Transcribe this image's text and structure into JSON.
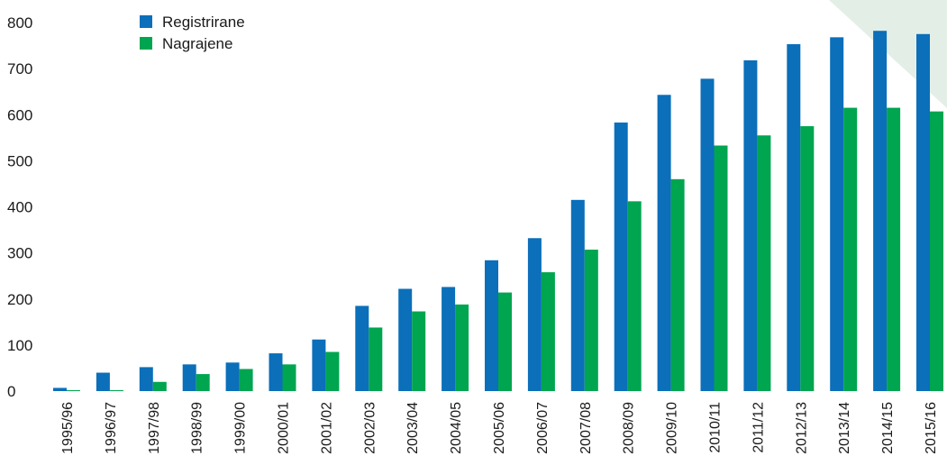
{
  "chart_data": {
    "type": "bar",
    "categories": [
      "1995/96",
      "1996/97",
      "1997/98",
      "1998/99",
      "1999/00",
      "2000/01",
      "2001/02",
      "2002/03",
      "2003/04",
      "2004/05",
      "2005/06",
      "2006/07",
      "2007/08",
      "2008/09",
      "2009/10",
      "2010/11",
      "2011/12",
      "2012/13",
      "2013/14",
      "2014/15",
      "2015/16"
    ],
    "series": [
      {
        "name": "Registrirane",
        "color": "#0b6fba",
        "values": [
          7,
          40,
          52,
          58,
          62,
          82,
          112,
          185,
          222,
          226,
          284,
          332,
          415,
          583,
          643,
          678,
          718,
          753,
          768,
          782,
          775
        ]
      },
      {
        "name": "Nagrajene",
        "color": "#00a550",
        "values": [
          2,
          2,
          20,
          37,
          48,
          58,
          85,
          138,
          173,
          188,
          214,
          258,
          307,
          412,
          460,
          533,
          555,
          575,
          615,
          615,
          607
        ]
      }
    ],
    "y_ticks": [
      0,
      100,
      200,
      300,
      400,
      500,
      600,
      700,
      800
    ],
    "ylim": [
      0,
      800
    ],
    "grid": false,
    "legend": "top-left",
    "decoration_color": "#e3efe6"
  }
}
